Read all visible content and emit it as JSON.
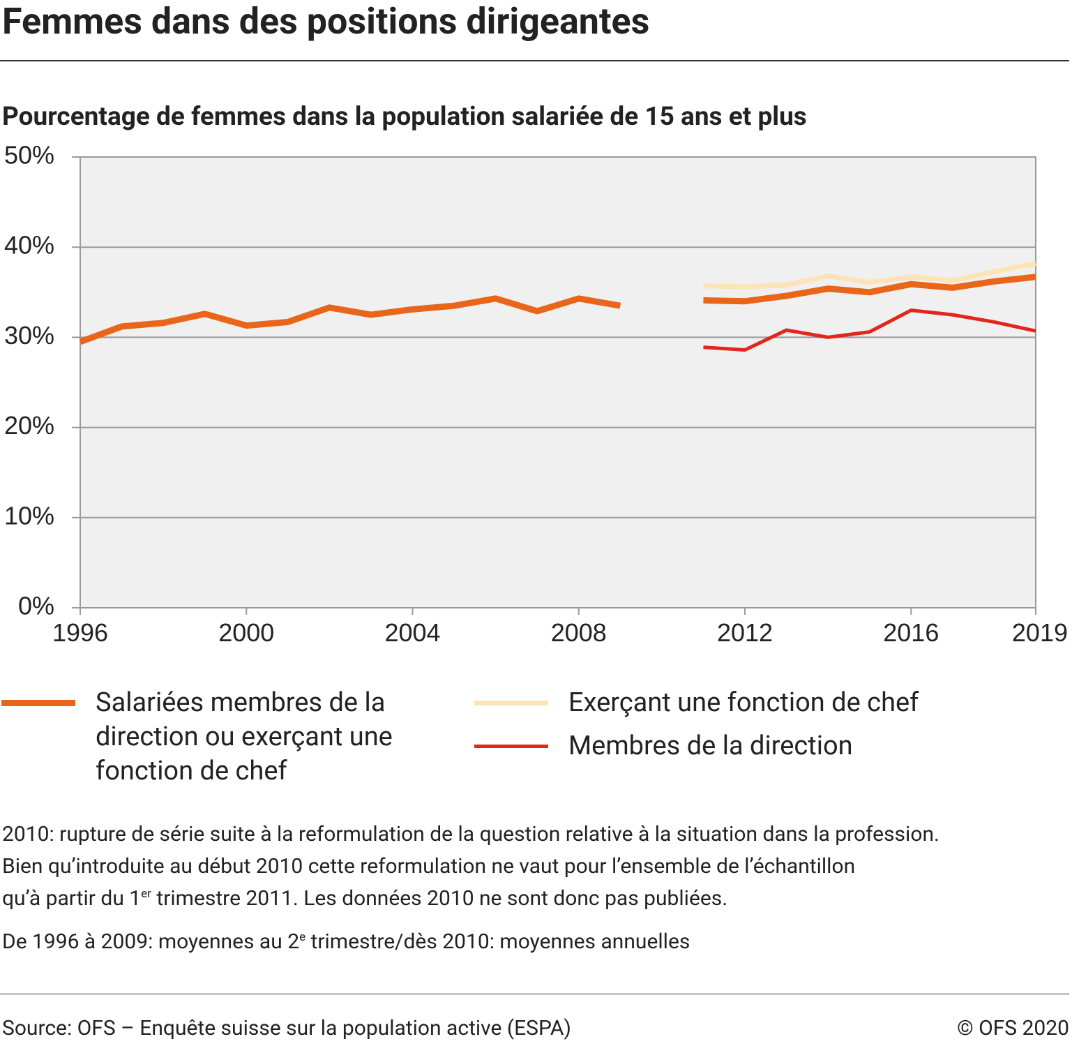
{
  "chart_data": {
    "type": "line",
    "title": "Femmes dans des positions dirigeantes",
    "subtitle": "Pourcentage de femmes dans la population salariée de 15 ans et plus",
    "x": [
      1996,
      1997,
      1998,
      1999,
      2000,
      2001,
      2002,
      2003,
      2004,
      2005,
      2006,
      2007,
      2008,
      2009,
      2010,
      2011,
      2012,
      2013,
      2014,
      2015,
      2016,
      2017,
      2018,
      2019
    ],
    "xlim": [
      1996,
      2019
    ],
    "xticks": [
      1996,
      2000,
      2004,
      2008,
      2012,
      2016,
      2019
    ],
    "ylim": [
      0,
      50
    ],
    "yticks": [
      {
        "value": 0,
        "label": "0%"
      },
      {
        "value": 10,
        "label": "10%"
      },
      {
        "value": 20,
        "label": "20%"
      },
      {
        "value": 30,
        "label": "30%"
      },
      {
        "value": 40,
        "label": "40%"
      },
      {
        "value": 50,
        "label": "50%"
      }
    ],
    "grid": true,
    "series": [
      {
        "name": "Salariées membres de la direction ou exerçant une fonction de chef",
        "color": "#e8651a",
        "values": [
          29.5,
          31.2,
          31.6,
          32.6,
          31.3,
          31.7,
          33.3,
          32.5,
          33.1,
          33.5,
          34.3,
          32.9,
          34.3,
          33.5,
          null,
          34.1,
          34.0,
          34.6,
          35.4,
          35.0,
          35.9,
          35.5,
          36.2,
          36.7
        ]
      },
      {
        "name": "Exerçant une fonction de chef",
        "color": "#fde3b5",
        "values": [
          null,
          null,
          null,
          null,
          null,
          null,
          null,
          null,
          null,
          null,
          null,
          null,
          null,
          null,
          null,
          35.7,
          35.6,
          35.8,
          36.8,
          36.1,
          36.7,
          36.3,
          37.3,
          38.2
        ]
      },
      {
        "name": "Membres de la direction",
        "color": "#e2261c",
        "values": [
          null,
          null,
          null,
          null,
          null,
          null,
          null,
          null,
          null,
          null,
          null,
          null,
          null,
          null,
          null,
          28.9,
          28.6,
          30.8,
          30.0,
          30.6,
          33.0,
          32.5,
          31.7,
          30.7
        ]
      }
    ],
    "notes": [
      [
        {
          "text": "2010: rupture de série suite à la reformulation de la question relative à la situation dans la profession."
        }
      ],
      [
        {
          "text": "Bien qu’introduite au début 2010 cette reformulation ne vaut pour l’ensemble de l’échantillon"
        }
      ],
      [
        {
          "text": "qu’à partir du 1"
        },
        {
          "sup": "er"
        },
        {
          "text": " trimestre 2011. Les données 2010 ne sont donc pas publiées."
        }
      ],
      [
        {
          "text": "De 1996 à 2009: moyennes au 2"
        },
        {
          "sup": "e"
        },
        {
          "text": " trimestre/dès 2010: moyennes annuelles"
        }
      ]
    ],
    "source": "Source: OFS – Enquête suisse sur la population active (ESPA)",
    "copyright": "© OFS 2020"
  }
}
